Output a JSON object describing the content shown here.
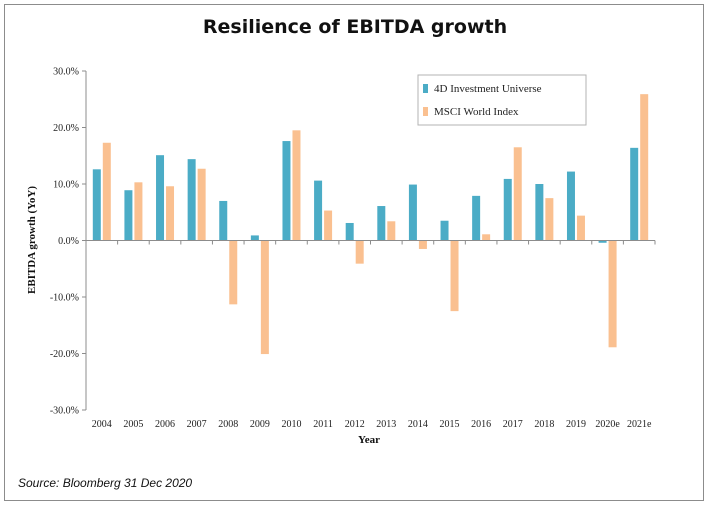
{
  "chart_data": {
    "type": "bar",
    "title": "Resilience of EBITDA growth",
    "xlabel": "Year",
    "ylabel": "EBITDA growth (YoY)",
    "ylim": [
      -30,
      30
    ],
    "yticks": [
      30,
      20,
      10,
      0,
      -10,
      -20,
      -30
    ],
    "ytick_labels": [
      "30.0%",
      "20.0%",
      "10.0%",
      "0.0%",
      "-10.0%",
      "-20.0%",
      "-30.0%"
    ],
    "categories": [
      "2004",
      "2005",
      "2006",
      "2007",
      "2008",
      "2009",
      "2010",
      "2011",
      "2012",
      "2013",
      "2014",
      "2015",
      "2016",
      "2017",
      "2018",
      "2019",
      "2020e",
      "2021e"
    ],
    "series": [
      {
        "name": "4D Investment Universe",
        "color": "#4bacc6",
        "values": [
          12.6,
          8.9,
          15.1,
          14.4,
          7.0,
          0.9,
          17.6,
          10.6,
          3.1,
          6.1,
          9.9,
          3.5,
          7.9,
          10.9,
          10.0,
          12.2,
          -0.4,
          16.4
        ]
      },
      {
        "name": "MSCI World Index",
        "color": "#fac090",
        "values": [
          17.3,
          10.3,
          9.6,
          12.7,
          -11.3,
          -20.1,
          19.5,
          5.3,
          -4.1,
          3.4,
          -1.5,
          -12.5,
          1.1,
          16.5,
          7.5,
          4.4,
          -18.9,
          25.9
        ]
      }
    ],
    "legend_position": "top-right"
  },
  "source_text": "Source: Bloomberg 31 Dec 2020"
}
